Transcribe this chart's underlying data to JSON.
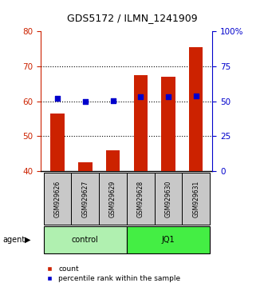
{
  "title": "GDS5172 / ILMN_1241909",
  "samples": [
    "GSM929626",
    "GSM929627",
    "GSM929629",
    "GSM929628",
    "GSM929630",
    "GSM929631"
  ],
  "counts": [
    56.5,
    42.5,
    46.0,
    67.5,
    67.0,
    75.5
  ],
  "percentile_ranks_pct": [
    52.0,
    49.5,
    50.5,
    53.0,
    53.0,
    54.0
  ],
  "bar_color": "#CC2200",
  "percentile_color": "#0000CC",
  "ylim_left": [
    40,
    80
  ],
  "ylim_right": [
    0,
    100
  ],
  "yticks_left": [
    40,
    50,
    60,
    70,
    80
  ],
  "yticks_right": [
    0,
    25,
    50,
    75,
    100
  ],
  "ytick_labels_right": [
    "0",
    "25",
    "50",
    "75",
    "100%"
  ],
  "grid_values": [
    50,
    60,
    70
  ],
  "bar_width": 0.5,
  "agent_label": "agent",
  "legend_count_label": "count",
  "legend_percentile_label": "percentile rank within the sample",
  "title_color": "#000000",
  "left_axis_color": "#CC2200",
  "right_axis_color": "#0000CC",
  "sample_box_color": "#C8C8C8",
  "control_color": "#B0F0B0",
  "jq1_color": "#44EE44"
}
